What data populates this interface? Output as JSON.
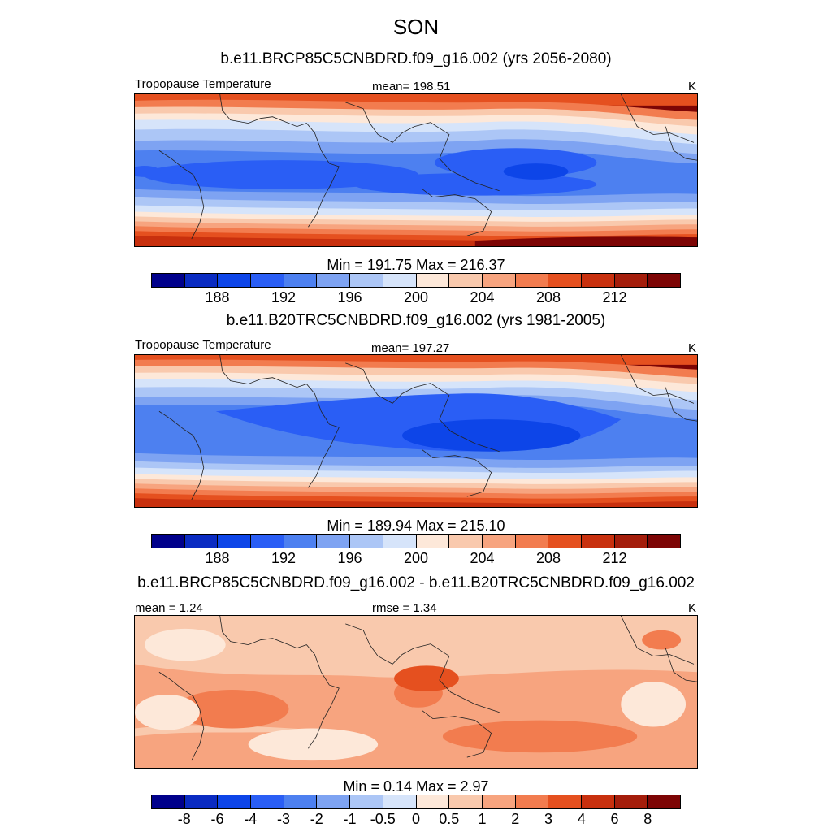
{
  "figure": {
    "season": "SON",
    "units_label": "K",
    "variable_label": "Tropopause Temperature"
  },
  "panels": [
    {
      "title": "b.e11.BRCP85C5CNBDRD.f09_g16.002 (yrs 2056-2080)",
      "left_label": "Tropopause Temperature",
      "center_label": "mean= 198.51",
      "right_label": "K",
      "minmax": "Min = 191.75 Max = 216.37",
      "colorbar_ticks": [
        "188",
        "192",
        "196",
        "200",
        "204",
        "208",
        "212"
      ]
    },
    {
      "title": "b.e11.B20TRC5CNBDRD.f09_g16.002 (yrs 1981-2005)",
      "left_label": "Tropopause Temperature",
      "center_label": "mean= 197.27",
      "right_label": "K",
      "minmax": "Min = 189.94 Max = 215.10",
      "colorbar_ticks": [
        "188",
        "192",
        "196",
        "200",
        "204",
        "208",
        "212"
      ]
    },
    {
      "title": "b.e11.BRCP85C5CNBDRD.f09_g16.002 - b.e11.B20TRC5CNBDRD.f09_g16.002",
      "left_label": "mean =   1.24",
      "center_label": "rmse =   1.34",
      "right_label": "K",
      "minmax": "Min =   0.14 Max =   2.97",
      "colorbar_ticks": [
        "-8",
        "-6",
        "-4",
        "-3",
        "-2",
        "-1",
        "-0.5",
        "0",
        "0.5",
        "1",
        "2",
        "3",
        "4",
        "6",
        "8"
      ]
    }
  ],
  "colors": {
    "palette_abs": [
      "#00008b",
      "#0a2bc2",
      "#0d45e8",
      "#2a5ef5",
      "#4d80f0",
      "#7ea3f2",
      "#acc6f6",
      "#d6e4fa",
      "#fde8d9",
      "#f9c9ad",
      "#f7a47f",
      "#f27c4f",
      "#e5501f",
      "#c8300e",
      "#a41d0b",
      "#7d0505"
    ],
    "palette_diff": [
      "#00008b",
      "#0a2bc2",
      "#0d45e8",
      "#2a5ef5",
      "#4d80f0",
      "#7ea3f2",
      "#acc6f6",
      "#d6e4fa",
      "#fde8d9",
      "#f9c9ad",
      "#f7a47f",
      "#f27c4f",
      "#e5501f",
      "#c8300e",
      "#a41d0b",
      "#7d0505"
    ]
  }
}
